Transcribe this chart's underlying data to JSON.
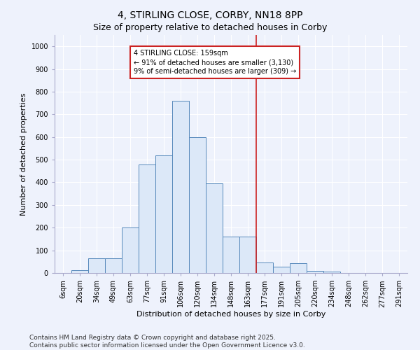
{
  "title": "4, STIRLING CLOSE, CORBY, NN18 8PP",
  "subtitle": "Size of property relative to detached houses in Corby",
  "xlabel": "Distribution of detached houses by size in Corby",
  "ylabel": "Number of detached properties",
  "categories": [
    "6sqm",
    "20sqm",
    "34sqm",
    "49sqm",
    "63sqm",
    "77sqm",
    "91sqm",
    "106sqm",
    "120sqm",
    "134sqm",
    "148sqm",
    "163sqm",
    "177sqm",
    "191sqm",
    "205sqm",
    "220sqm",
    "234sqm",
    "248sqm",
    "262sqm",
    "277sqm",
    "291sqm"
  ],
  "values": [
    0,
    12,
    65,
    65,
    200,
    480,
    520,
    760,
    600,
    395,
    160,
    160,
    45,
    27,
    42,
    10,
    7,
    0,
    0,
    0,
    0
  ],
  "bar_color": "#dce8f8",
  "bar_edge_color": "#5588bb",
  "vline_color": "#cc2222",
  "annotation_text": "4 STIRLING CLOSE: 159sqm\n← 91% of detached houses are smaller (3,130)\n9% of semi-detached houses are larger (309) →",
  "annotation_box_color": "white",
  "annotation_box_edge_color": "#cc2222",
  "ylim": [
    0,
    1050
  ],
  "yticks": [
    0,
    100,
    200,
    300,
    400,
    500,
    600,
    700,
    800,
    900,
    1000
  ],
  "footer": "Contains HM Land Registry data © Crown copyright and database right 2025.\nContains public sector information licensed under the Open Government Licence v3.0.",
  "background_color": "#eef2fc",
  "grid_color": "#ffffff",
  "title_fontsize": 10,
  "subtitle_fontsize": 9,
  "axis_label_fontsize": 8,
  "tick_fontsize": 7,
  "footer_fontsize": 6.5
}
